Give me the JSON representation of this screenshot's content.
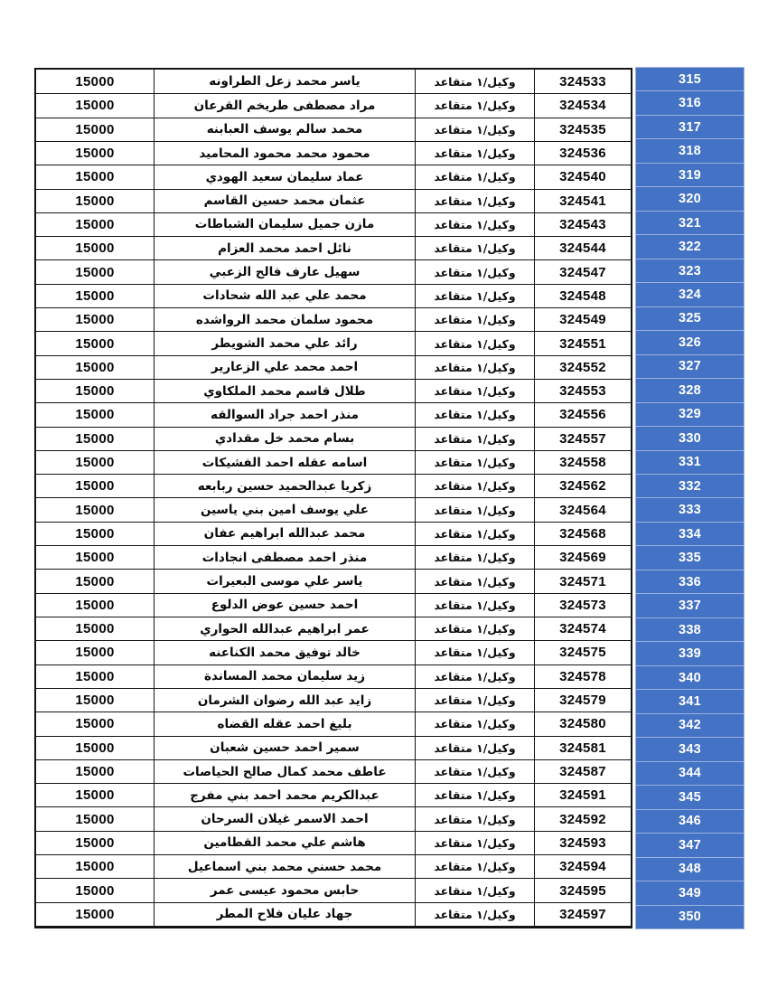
{
  "page": {
    "background_color": "#ffffff",
    "accent_blue": "#4472c4",
    "border_color": "#141414",
    "number_column_text_color": "#ffffff"
  },
  "table": {
    "row_count": 36,
    "number_range": "315-350",
    "rows": [
      {
        "number": "315",
        "id": "324533",
        "rank": "وكيل/١ متقاعد",
        "name": "ياسر محمد زعل الطراونه",
        "amount": "15000"
      },
      {
        "number": "316",
        "id": "324534",
        "rank": "وكيل/١ متقاعد",
        "name": "مراد مصطفى طريخم القرعان",
        "amount": "15000"
      },
      {
        "number": "317",
        "id": "324535",
        "rank": "وكيل/١ متقاعد",
        "name": "محمد سالم يوسف العبابنه",
        "amount": "15000"
      },
      {
        "number": "318",
        "id": "324536",
        "rank": "وكيل/١ متقاعد",
        "name": "محمود محمد محمود المحاميد",
        "amount": "15000"
      },
      {
        "number": "319",
        "id": "324540",
        "rank": "وكيل/١ متقاعد",
        "name": "عماد سليمان سعيد الهودي",
        "amount": "15000"
      },
      {
        "number": "320",
        "id": "324541",
        "rank": "وكيل/١ متقاعد",
        "name": "عثمان محمد حسين القاسم",
        "amount": "15000"
      },
      {
        "number": "321",
        "id": "324543",
        "rank": "وكيل/١ متقاعد",
        "name": "مازن جميل سليمان الشباطات",
        "amount": "15000"
      },
      {
        "number": "322",
        "id": "324544",
        "rank": "وكيل/١ متقاعد",
        "name": "نائل احمد محمد العزام",
        "amount": "15000"
      },
      {
        "number": "323",
        "id": "324547",
        "rank": "وكيل/١ متقاعد",
        "name": "سهيل عارف فالح الزعبي",
        "amount": "15000"
      },
      {
        "number": "324",
        "id": "324548",
        "rank": "وكيل/١ متقاعد",
        "name": "محمد علي عبد الله شحادات",
        "amount": "15000"
      },
      {
        "number": "325",
        "id": "324549",
        "rank": "وكيل/١ متقاعد",
        "name": "محمود سلمان محمد الرواشده",
        "amount": "15000"
      },
      {
        "number": "326",
        "id": "324551",
        "rank": "وكيل/١ متقاعد",
        "name": "رائد علي محمد الشويطر",
        "amount": "15000"
      },
      {
        "number": "327",
        "id": "324552",
        "rank": "وكيل/١ متقاعد",
        "name": "احمد محمد علي الزعارير",
        "amount": "15000"
      },
      {
        "number": "328",
        "id": "324553",
        "rank": "وكيل/١ متقاعد",
        "name": "طلال قاسم محمد الملكاوي",
        "amount": "15000"
      },
      {
        "number": "329",
        "id": "324556",
        "rank": "وكيل/١ متقاعد",
        "name": "منذر احمد جراد السوالقه",
        "amount": "15000"
      },
      {
        "number": "330",
        "id": "324557",
        "rank": "وكيل/١ متقاعد",
        "name": "بسام محمد خل مقدادي",
        "amount": "15000"
      },
      {
        "number": "331",
        "id": "324558",
        "rank": "وكيل/١ متقاعد",
        "name": "اسامه عقله احمد الفشيكات",
        "amount": "15000"
      },
      {
        "number": "332",
        "id": "324562",
        "rank": "وكيل/١ متقاعد",
        "name": "زكريا عبدالحميد حسين ربابعه",
        "amount": "15000"
      },
      {
        "number": "333",
        "id": "324564",
        "rank": "وكيل/١ متقاعد",
        "name": "علي يوسف امين بني ياسين",
        "amount": "15000"
      },
      {
        "number": "334",
        "id": "324568",
        "rank": "وكيل/١ متقاعد",
        "name": "محمد عبدالله ابراهيم عفان",
        "amount": "15000"
      },
      {
        "number": "335",
        "id": "324569",
        "rank": "وكيل/١ متقاعد",
        "name": "منذر احمد مصطفى انجادات",
        "amount": "15000"
      },
      {
        "number": "336",
        "id": "324571",
        "rank": "وكيل/١ متقاعد",
        "name": "ياسر علي موسى البعيرات",
        "amount": "15000"
      },
      {
        "number": "337",
        "id": "324573",
        "rank": "وكيل/١ متقاعد",
        "name": "احمد حسين عوض الدلوع",
        "amount": "15000"
      },
      {
        "number": "338",
        "id": "324574",
        "rank": "وكيل/١ متقاعد",
        "name": "عمر ابراهيم عبدالله الحواري",
        "amount": "15000"
      },
      {
        "number": "339",
        "id": "324575",
        "rank": "وكيل/١ متقاعد",
        "name": "خالد توفيق محمد الكناعنه",
        "amount": "15000"
      },
      {
        "number": "340",
        "id": "324578",
        "rank": "وكيل/١ متقاعد",
        "name": "زيد سليمان محمد المساندة",
        "amount": "15000"
      },
      {
        "number": "341",
        "id": "324579",
        "rank": "وكيل/١ متقاعد",
        "name": "زايد عبد الله رضوان الشرمان",
        "amount": "15000"
      },
      {
        "number": "342",
        "id": "324580",
        "rank": "وكيل/١ متقاعد",
        "name": "بليغ احمد عقله القضاه",
        "amount": "15000"
      },
      {
        "number": "343",
        "id": "324581",
        "rank": "وكيل/١ متقاعد",
        "name": "سمير احمد حسين شعبان",
        "amount": "15000"
      },
      {
        "number": "344",
        "id": "324587",
        "rank": "وكيل/١ متقاعد",
        "name": "عاطف محمد كمال صالح الحياصات",
        "amount": "15000"
      },
      {
        "number": "345",
        "id": "324591",
        "rank": "وكيل/١ متقاعد",
        "name": "عبدالكريم محمد احمد بني مفرج",
        "amount": "15000"
      },
      {
        "number": "346",
        "id": "324592",
        "rank": "وكيل/١ متقاعد",
        "name": "احمد الاسمر غيلان السرحان",
        "amount": "15000"
      },
      {
        "number": "347",
        "id": "324593",
        "rank": "وكيل/١ متقاعد",
        "name": "هاشم علي محمد القطامين",
        "amount": "15000"
      },
      {
        "number": "348",
        "id": "324594",
        "rank": "وكيل/١ متقاعد",
        "name": "محمد حسني محمد بني اسماعيل",
        "amount": "15000"
      },
      {
        "number": "349",
        "id": "324595",
        "rank": "وكيل/١ متقاعد",
        "name": "حابس محمود عيسى عمر",
        "amount": "15000"
      },
      {
        "number": "350",
        "id": "324597",
        "rank": "وكيل/١ متقاعد",
        "name": "جهاد عليان فلاح المطر",
        "amount": "15000"
      }
    ]
  }
}
